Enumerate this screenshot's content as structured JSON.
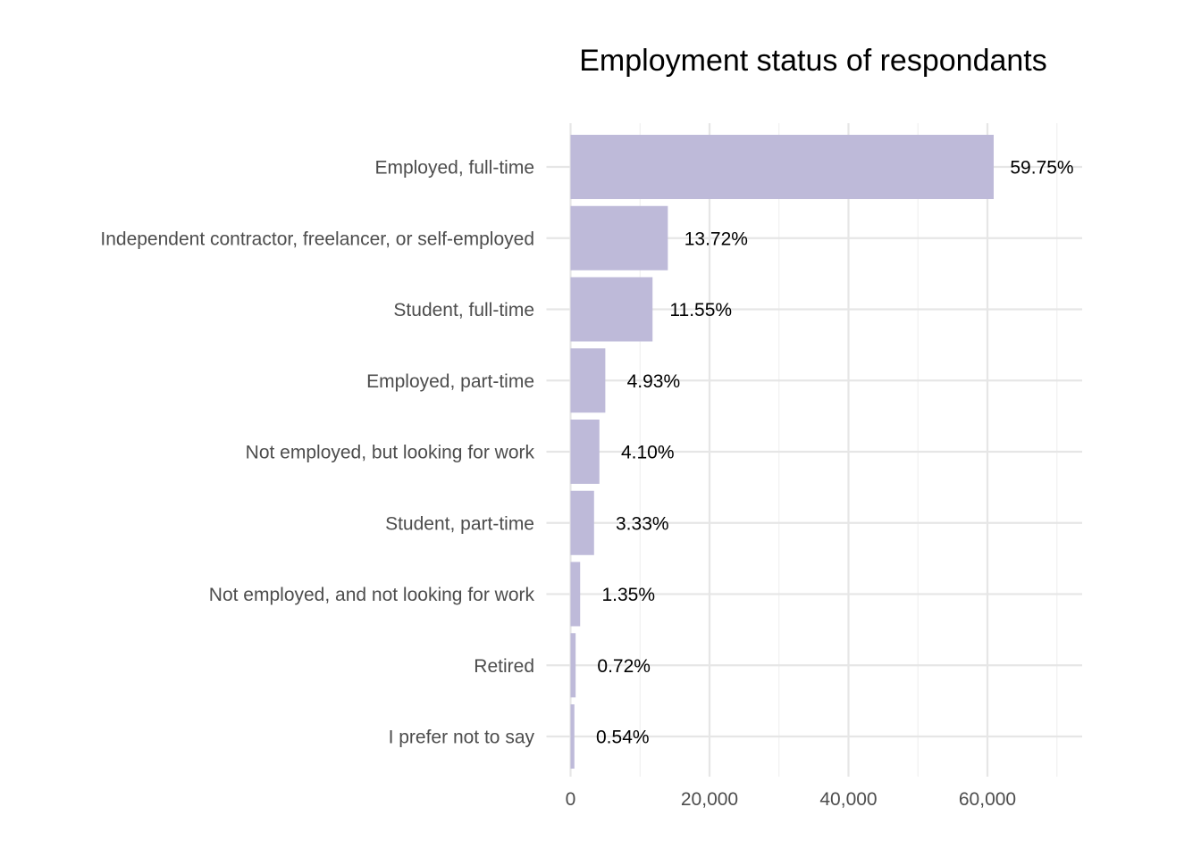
{
  "chart_data": {
    "type": "bar",
    "orientation": "horizontal",
    "title": "Employment status of respondants",
    "xlabel": "",
    "ylabel": "",
    "categories": [
      "Employed, full-time",
      "Independent contractor, freelancer, or self-employed",
      "Student, full-time",
      "Employed, part-time",
      "Not employed, but looking for work",
      "Student, part-time",
      "Not employed, and not looking for work",
      "Retired",
      "I prefer not to say"
    ],
    "values": [
      60900,
      14000,
      11800,
      5000,
      4150,
      3380,
      1380,
      730,
      550
    ],
    "data_labels": [
      "59.75%",
      "13.72%",
      "11.55%",
      "4.93%",
      "4.10%",
      "3.33%",
      "1.35%",
      "0.72%",
      "0.54%"
    ],
    "x_ticks": [
      0,
      20000,
      40000,
      60000
    ],
    "x_tick_labels": [
      "0",
      "20,000",
      "40,000",
      "60,000"
    ],
    "xlim": [
      0,
      73500
    ],
    "grid": true,
    "legend": "none",
    "colors": {
      "bar": "#bebad9",
      "grid_major": "#e6e6e6",
      "grid_minor": "#f0f0f0",
      "background": "#ffffff"
    }
  }
}
